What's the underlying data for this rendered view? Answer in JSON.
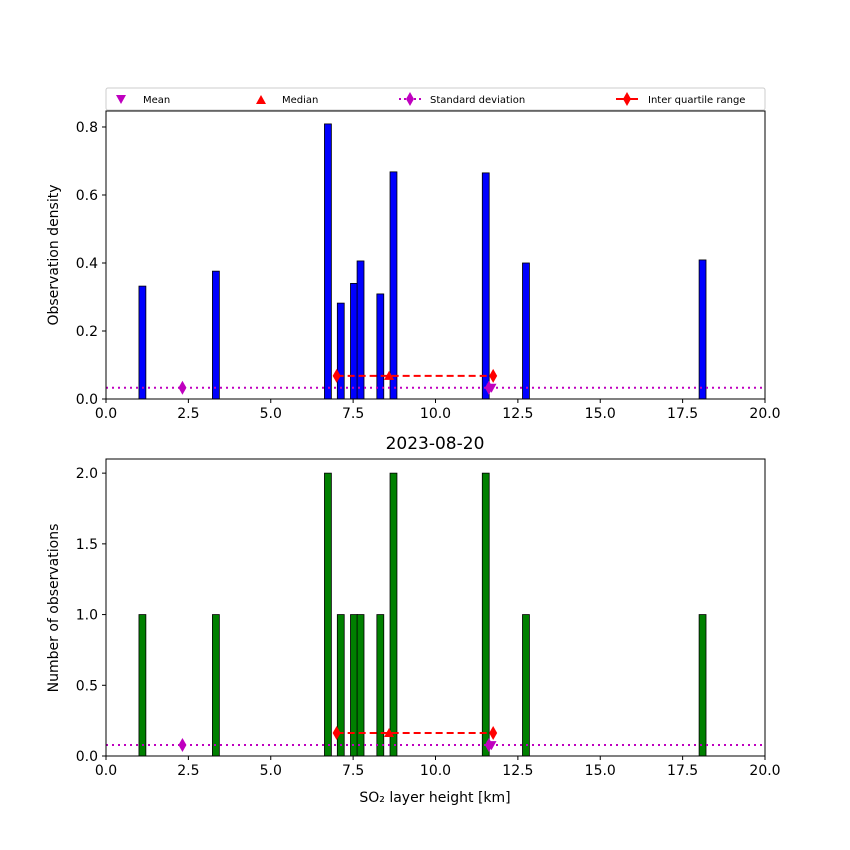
{
  "legend": {
    "mean": "Mean",
    "median": "Median",
    "std": "Standard deviation",
    "iqr": "Inter quartile range"
  },
  "colors": {
    "density_bar": "#0000ff",
    "count_bar": "#008000",
    "mean": "#bf00bf",
    "median": "#ff0000",
    "std": "#bf00bf",
    "iqr": "#ff0000"
  },
  "chart_data": [
    {
      "type": "bar",
      "title": "",
      "xlabel": "",
      "ylabel": "Observation density",
      "xlim": [
        0,
        20
      ],
      "ylim": [
        0,
        0.847
      ],
      "xticks": [
        "0.0",
        "2.5",
        "5.0",
        "7.5",
        "10.0",
        "12.5",
        "15.0",
        "17.5",
        "20.0"
      ],
      "yticks": [
        "0.0",
        "0.2",
        "0.4",
        "0.6",
        "0.8"
      ],
      "ytick_values": [
        0,
        0.2,
        0.4,
        0.6,
        0.8
      ],
      "bin_width": 0.21,
      "x": [
        1.0,
        3.23,
        6.63,
        7.02,
        7.42,
        7.62,
        8.22,
        8.62,
        11.42,
        12.64,
        18.0
      ],
      "values": [
        0.332,
        0.376,
        0.809,
        0.282,
        0.34,
        0.406,
        0.309,
        0.668,
        0.665,
        0.4,
        0.409
      ],
      "mean": {
        "x": 11.7,
        "y": 0.03
      },
      "median": {
        "x": 8.59,
        "y": 0.068
      },
      "std": {
        "x": [
          2.32,
          11.62
        ],
        "y": 0.033
      },
      "iqr": {
        "x": [
          7.0,
          11.75
        ],
        "y": 0.068
      }
    },
    {
      "type": "bar",
      "title": "2023-08-20",
      "xlabel": "SO₂ layer height [km]",
      "ylabel": "Number of observations",
      "xlim": [
        0,
        20
      ],
      "ylim": [
        0,
        2.1
      ],
      "xticks": [
        "0.0",
        "2.5",
        "5.0",
        "7.5",
        "10.0",
        "12.5",
        "15.0",
        "17.5",
        "20.0"
      ],
      "yticks": [
        "0.0",
        "0.5",
        "1.0",
        "1.5",
        "2.0"
      ],
      "ytick_values": [
        0,
        0.5,
        1,
        1.5,
        2
      ],
      "bin_width": 0.21,
      "x": [
        1.0,
        3.23,
        6.63,
        7.02,
        7.42,
        7.62,
        8.22,
        8.62,
        11.42,
        12.64,
        18.0
      ],
      "values": [
        1,
        1,
        2,
        1,
        1,
        1,
        1,
        2,
        2,
        1,
        1
      ],
      "mean": {
        "x": 11.7,
        "y": 0.07
      },
      "median": {
        "x": 8.59,
        "y": 0.163
      },
      "std": {
        "x": [
          2.32,
          11.62
        ],
        "y": 0.078
      },
      "iqr": {
        "x": [
          7.0,
          11.75
        ],
        "y": 0.163
      }
    }
  ]
}
